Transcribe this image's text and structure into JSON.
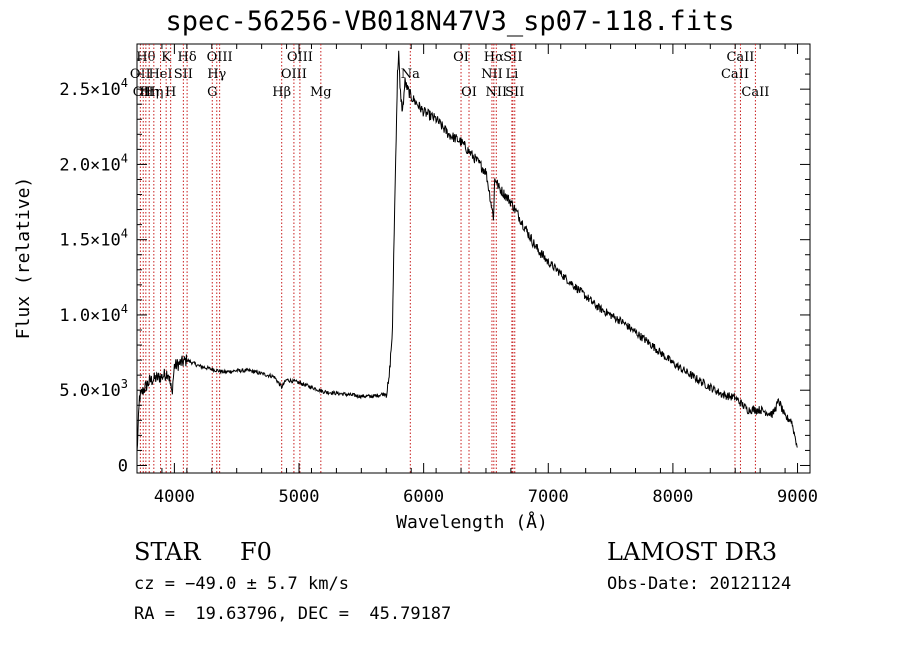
{
  "chart_data": {
    "type": "line",
    "title": "spec-56256-VB018N47V3_sp07-118.fits",
    "xlabel": "Wavelength (Å)",
    "ylabel": "Flux (relative)",
    "xlim": [
      3700,
      9100
    ],
    "ylim": [
      -500,
      28000
    ],
    "x_ticks": [
      {
        "value": 4000,
        "label": "4000"
      },
      {
        "value": 5000,
        "label": "5000"
      },
      {
        "value": 6000,
        "label": "6000"
      },
      {
        "value": 7000,
        "label": "7000"
      },
      {
        "value": 8000,
        "label": "8000"
      },
      {
        "value": 9000,
        "label": "9000"
      }
    ],
    "y_ticks": [
      {
        "value": 0,
        "mantissa": "0",
        "exponent": ""
      },
      {
        "value": 5000,
        "mantissa": "5.0×10",
        "exponent": "3"
      },
      {
        "value": 10000,
        "mantissa": "1.0×10",
        "exponent": "4"
      },
      {
        "value": 15000,
        "mantissa": "1.5×10",
        "exponent": "4"
      },
      {
        "value": 20000,
        "mantissa": "2.0×10",
        "exponent": "4"
      },
      {
        "value": 25000,
        "mantissa": "2.5×10",
        "exponent": "4"
      }
    ],
    "series": [
      {
        "name": "spectrum",
        "x": [
          3700,
          3720,
          3750,
          3800,
          3850,
          3900,
          3950,
          3980,
          4000,
          4050,
          4100,
          4200,
          4300,
          4400,
          4500,
          4600,
          4700,
          4800,
          4860,
          4900,
          5000,
          5100,
          5200,
          5300,
          5400,
          5500,
          5600,
          5700,
          5720,
          5750,
          5760,
          5780,
          5790,
          5800,
          5810,
          5830,
          5850,
          5870,
          5900,
          5950,
          6000,
          6100,
          6200,
          6300,
          6400,
          6500,
          6560,
          6570,
          6580,
          6600,
          6700,
          6800,
          6900,
          7000,
          7200,
          7400,
          7600,
          7800,
          8000,
          8200,
          8400,
          8500,
          8600,
          8700,
          8800,
          8850,
          8900,
          8950,
          9000
        ],
        "y": [
          800,
          4500,
          5000,
          5600,
          5800,
          5900,
          6200,
          4800,
          6600,
          6800,
          7000,
          6600,
          6400,
          6200,
          6300,
          6300,
          6100,
          5900,
          5200,
          5700,
          5500,
          5200,
          4900,
          4800,
          4700,
          4600,
          4600,
          4800,
          5500,
          9000,
          14000,
          22000,
          26000,
          27500,
          25000,
          23500,
          25500,
          25000,
          24500,
          24000,
          23500,
          23000,
          22000,
          21500,
          20500,
          19500,
          16500,
          19000,
          19000,
          18500,
          17500,
          16000,
          14500,
          13500,
          12000,
          10500,
          9500,
          8200,
          6800,
          5700,
          4700,
          4500,
          3700,
          3700,
          3400,
          4300,
          3200,
          3000,
          1200
        ]
      }
    ],
    "spectral_lines": [
      {
        "wavelength": 3727,
        "row": 1,
        "label": "OII"
      },
      {
        "wavelength": 3750,
        "row": 2,
        "label": "OII"
      },
      {
        "wavelength": 3771,
        "row": 0,
        "label": "Hθ"
      },
      {
        "wavelength": 3798,
        "row": 2,
        "label": "Hη"
      },
      {
        "wavelength": 3835,
        "row": 2,
        "label": "Hη"
      },
      {
        "wavelength": 3889,
        "row": 1,
        "label": "HeI"
      },
      {
        "wavelength": 3934,
        "row": 0,
        "label": "K"
      },
      {
        "wavelength": 3970,
        "row": 2,
        "label": "H"
      },
      {
        "wavelength": 4072,
        "row": 1,
        "label": "SII"
      },
      {
        "wavelength": 4102,
        "row": 0,
        "label": "Hδ"
      },
      {
        "wavelength": 4304,
        "row": 2,
        "label": "G"
      },
      {
        "wavelength": 4340,
        "row": 1,
        "label": "Hγ"
      },
      {
        "wavelength": 4363,
        "row": 0,
        "label": "OIII"
      },
      {
        "wavelength": 4861,
        "row": 2,
        "label": "Hβ"
      },
      {
        "wavelength": 4959,
        "row": 1,
        "label": "OIII"
      },
      {
        "wavelength": 5007,
        "row": 0,
        "label": "OIII"
      },
      {
        "wavelength": 5175,
        "row": 2,
        "label": "Mg"
      },
      {
        "wavelength": 5893,
        "row": 1,
        "label": "Na"
      },
      {
        "wavelength": 6300,
        "row": 0,
        "label": "OI"
      },
      {
        "wavelength": 6364,
        "row": 2,
        "label": "OI"
      },
      {
        "wavelength": 6548,
        "row": 1,
        "label": "NII"
      },
      {
        "wavelength": 6563,
        "row": 0,
        "label": "Hα"
      },
      {
        "wavelength": 6583,
        "row": 2,
        "label": "NII"
      },
      {
        "wavelength": 6708,
        "row": 1,
        "label": "Li"
      },
      {
        "wavelength": 6716,
        "row": 0,
        "label": "SII"
      },
      {
        "wavelength": 6731,
        "row": 2,
        "label": "SII"
      },
      {
        "wavelength": 8498,
        "row": 1,
        "label": "CaII"
      },
      {
        "wavelength": 8542,
        "row": 0,
        "label": "CaII"
      },
      {
        "wavelength": 8662,
        "row": 2,
        "label": "CaII"
      }
    ]
  },
  "info": {
    "object_class": "STAR",
    "subclass": "F0",
    "survey": "LAMOST DR3",
    "redshift": "cz = −49.0 ± 5.7 km/s",
    "obs_date": "Obs-Date: 20121124",
    "coords": "RA =  19.63796, DEC =  45.79187"
  },
  "colors": {
    "spectrum": "#000000",
    "line_marker": "#c81e1e",
    "axes": "#000000"
  }
}
